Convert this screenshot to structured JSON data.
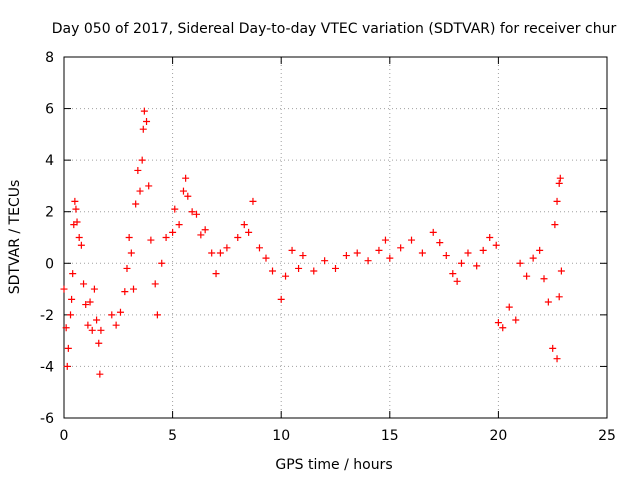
{
  "chart_data": {
    "type": "scatter",
    "title": "Day 050 of 2017, Sidereal Day-to-day VTEC variation (SDTVAR) for receiver chur",
    "xlabel": "GPS time / hours",
    "ylabel": "SDTVAR / TECUs",
    "xlim": [
      0,
      25
    ],
    "ylim": [
      -6,
      8
    ],
    "xticks": [
      "0",
      "5",
      "10",
      "15",
      "20",
      "25"
    ],
    "yticks": [
      "-6",
      "-4",
      "-2",
      "0",
      "2",
      "4",
      "6",
      "8"
    ],
    "grid": true,
    "marker": "+",
    "series": [
      {
        "name": "SDTVAR",
        "color": "#ff0000",
        "points": [
          [
            0.0,
            -1.0
          ],
          [
            0.1,
            -2.5
          ],
          [
            0.15,
            -4.0
          ],
          [
            0.2,
            -3.3
          ],
          [
            0.3,
            -2.0
          ],
          [
            0.35,
            -1.4
          ],
          [
            0.4,
            -0.4
          ],
          [
            0.45,
            1.5
          ],
          [
            0.5,
            2.4
          ],
          [
            0.55,
            2.1
          ],
          [
            0.6,
            1.6
          ],
          [
            0.7,
            1.0
          ],
          [
            0.8,
            0.7
          ],
          [
            0.9,
            -0.8
          ],
          [
            1.0,
            -1.6
          ],
          [
            1.1,
            -2.4
          ],
          [
            1.2,
            -1.5
          ],
          [
            1.3,
            -2.6
          ],
          [
            1.4,
            -1.0
          ],
          [
            1.5,
            -2.2
          ],
          [
            1.6,
            -3.1
          ],
          [
            1.65,
            -4.3
          ],
          [
            1.7,
            -2.6
          ],
          [
            2.2,
            -2.0
          ],
          [
            2.4,
            -2.4
          ],
          [
            2.6,
            -1.9
          ],
          [
            2.8,
            -1.1
          ],
          [
            2.9,
            -0.2
          ],
          [
            3.0,
            1.0
          ],
          [
            3.1,
            0.4
          ],
          [
            3.2,
            -1.0
          ],
          [
            3.3,
            2.3
          ],
          [
            3.4,
            3.6
          ],
          [
            3.5,
            2.8
          ],
          [
            3.6,
            4.0
          ],
          [
            3.65,
            5.2
          ],
          [
            3.7,
            5.9
          ],
          [
            3.8,
            5.5
          ],
          [
            3.9,
            3.0
          ],
          [
            4.0,
            0.9
          ],
          [
            4.2,
            -0.8
          ],
          [
            4.3,
            -2.0
          ],
          [
            4.5,
            0.0
          ],
          [
            4.7,
            1.0
          ],
          [
            5.0,
            1.2
          ],
          [
            5.1,
            2.1
          ],
          [
            5.3,
            1.5
          ],
          [
            5.5,
            2.8
          ],
          [
            5.6,
            3.3
          ],
          [
            5.7,
            2.6
          ],
          [
            5.9,
            2.0
          ],
          [
            6.1,
            1.9
          ],
          [
            6.3,
            1.1
          ],
          [
            6.5,
            1.3
          ],
          [
            6.8,
            0.4
          ],
          [
            7.0,
            -0.4
          ],
          [
            7.2,
            0.4
          ],
          [
            7.5,
            0.6
          ],
          [
            8.0,
            1.0
          ],
          [
            8.3,
            1.5
          ],
          [
            8.5,
            1.2
          ],
          [
            8.7,
            2.4
          ],
          [
            9.0,
            0.6
          ],
          [
            9.3,
            0.2
          ],
          [
            9.6,
            -0.3
          ],
          [
            10.0,
            -1.4
          ],
          [
            10.2,
            -0.5
          ],
          [
            10.5,
            0.5
          ],
          [
            10.8,
            -0.2
          ],
          [
            11.0,
            0.3
          ],
          [
            11.5,
            -0.3
          ],
          [
            12.0,
            0.1
          ],
          [
            12.5,
            -0.2
          ],
          [
            13.0,
            0.3
          ],
          [
            13.5,
            0.4
          ],
          [
            14.0,
            0.1
          ],
          [
            14.5,
            0.5
          ],
          [
            14.8,
            0.9
          ],
          [
            15.0,
            0.2
          ],
          [
            15.5,
            0.6
          ],
          [
            16.0,
            0.9
          ],
          [
            16.5,
            0.4
          ],
          [
            17.0,
            1.2
          ],
          [
            17.3,
            0.8
          ],
          [
            17.6,
            0.3
          ],
          [
            17.9,
            -0.4
          ],
          [
            18.1,
            -0.7
          ],
          [
            18.3,
            0.0
          ],
          [
            18.6,
            0.4
          ],
          [
            19.0,
            -0.1
          ],
          [
            19.3,
            0.5
          ],
          [
            19.6,
            1.0
          ],
          [
            19.9,
            0.7
          ],
          [
            20.0,
            -2.3
          ],
          [
            20.2,
            -2.5
          ],
          [
            20.5,
            -1.7
          ],
          [
            20.8,
            -2.2
          ],
          [
            21.0,
            0.0
          ],
          [
            21.3,
            -0.5
          ],
          [
            21.6,
            0.2
          ],
          [
            21.9,
            0.5
          ],
          [
            22.1,
            -0.6
          ],
          [
            22.3,
            -1.5
          ],
          [
            22.5,
            -3.3
          ],
          [
            22.7,
            -3.7
          ],
          [
            22.8,
            -1.3
          ],
          [
            22.9,
            -0.3
          ],
          [
            22.6,
            1.5
          ],
          [
            22.7,
            2.4
          ],
          [
            22.8,
            3.1
          ],
          [
            22.85,
            3.3
          ]
        ]
      }
    ]
  }
}
